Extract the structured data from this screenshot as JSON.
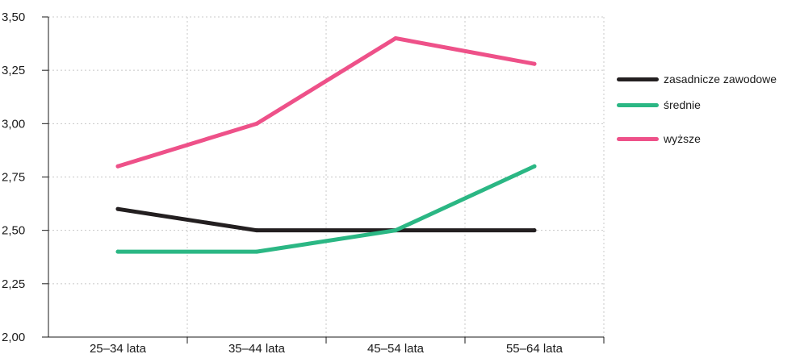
{
  "chart_data": {
    "type": "line",
    "categories": [
      "25–34 lata",
      "35–44 lata",
      "45–54 lata",
      "55–64 lata"
    ],
    "series": [
      {
        "name": "zasadnicze zawodowe",
        "values": [
          2.6,
          2.5,
          2.5,
          2.5
        ],
        "color": "#231f20"
      },
      {
        "name": "średnie",
        "values": [
          2.4,
          2.4,
          2.5,
          2.8
        ],
        "color": "#2bb784"
      },
      {
        "name": "wyższe",
        "values": [
          2.8,
          3.0,
          3.4,
          3.28
        ],
        "color": "#ee5189"
      }
    ],
    "ylim": [
      2.0,
      3.5
    ],
    "yticks": [
      "2,00",
      "2,25",
      "2,50",
      "2,75",
      "3,00",
      "3,25",
      "3,50"
    ],
    "title": "",
    "xlabel": "",
    "ylabel": "",
    "grid": true,
    "legend_position": "right"
  }
}
